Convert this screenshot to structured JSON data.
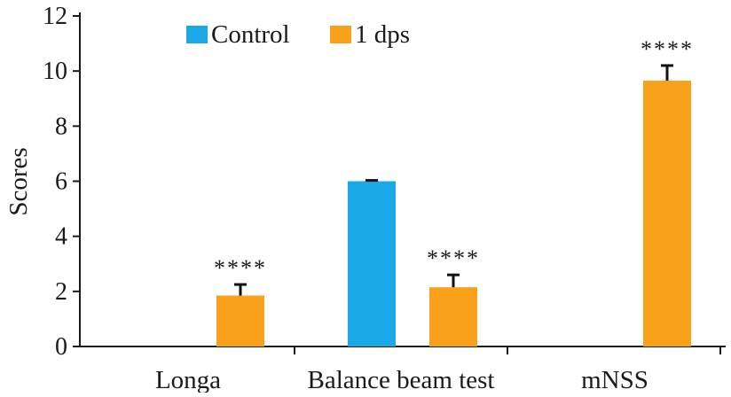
{
  "chart_data": {
    "type": "bar",
    "ylabel": "Scores",
    "ylim": [
      0,
      12
    ],
    "yticks": [
      0,
      2,
      4,
      6,
      8,
      10,
      12
    ],
    "categories": [
      "Longa",
      "Balance beam test",
      "mNSS"
    ],
    "series": [
      {
        "name": "Control",
        "color": "#1aa9e6",
        "values": [
          0,
          6.0,
          0
        ],
        "errors": [
          0,
          0.03,
          0
        ]
      },
      {
        "name": "1 dps",
        "color": "#f9a11b",
        "values": [
          1.85,
          2.15,
          9.65
        ],
        "errors": [
          0.4,
          0.45,
          0.55
        ]
      }
    ],
    "annotations": [
      {
        "category": "Longa",
        "series": "1 dps",
        "text": "****"
      },
      {
        "category": "Balance beam test",
        "series": "1 dps",
        "text": "****"
      },
      {
        "category": "mNSS",
        "series": "1 dps",
        "text": "****"
      }
    ],
    "legend": {
      "position": "top-left"
    },
    "grid": false
  }
}
